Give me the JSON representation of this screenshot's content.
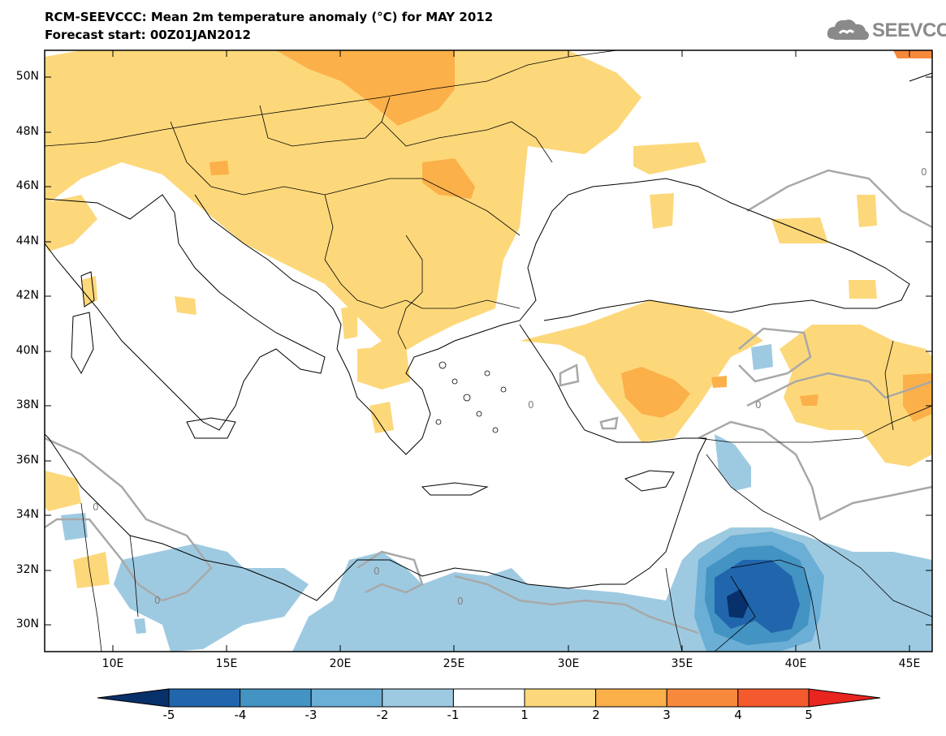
{
  "header": {
    "title": "RCM-SEEVCCC: Mean 2m temperature anomaly (°C) for MAY 2012",
    "subtitle": "Forecast start: 00Z01JAN2012",
    "logo_text": "SEEVCCC"
  },
  "axes": {
    "lat_labels": [
      "50N",
      "48N",
      "46N",
      "44N",
      "42N",
      "40N",
      "38N",
      "36N",
      "34N",
      "32N",
      "30N"
    ],
    "lon_labels": [
      "10E",
      "15E",
      "20E",
      "25E",
      "30E",
      "35E",
      "40E",
      "45E"
    ]
  },
  "contour_labels": [
    "0",
    "0",
    "0",
    "0",
    "0",
    "0",
    "0"
  ],
  "colorbar": {
    "labels": [
      "-5",
      "-4",
      "-3",
      "-2",
      "-1",
      "1",
      "2",
      "3",
      "4",
      "5"
    ],
    "colors": [
      "#08306b",
      "#2166ac",
      "#4393c3",
      "#6baed6",
      "#9ecae1",
      "#ffffff",
      "#fdd87a",
      "#fbb04a",
      "#f7893c",
      "#f45a2d",
      "#e8251f"
    ]
  },
  "colors": {
    "warm1": "#fdd87a",
    "warm2": "#fbb04a",
    "cool1": "#9ecae1",
    "cool2": "#6baed6",
    "cool3": "#4393c3",
    "cool4": "#2166ac",
    "cool5": "#08306b"
  }
}
